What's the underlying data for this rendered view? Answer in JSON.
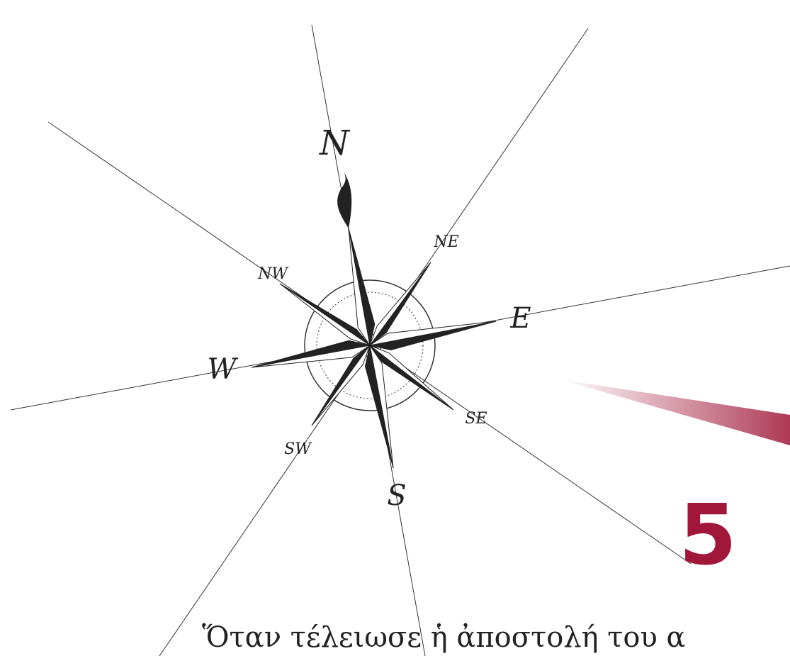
{
  "compass": {
    "labels": [
      "N",
      "NE",
      "E",
      "SE",
      "S",
      "SW",
      "W",
      "NW"
    ]
  },
  "chapter": {
    "number": "5",
    "first_line": "Ὅταν τέλειωσε ἡ ἀποστολή του α"
  }
}
